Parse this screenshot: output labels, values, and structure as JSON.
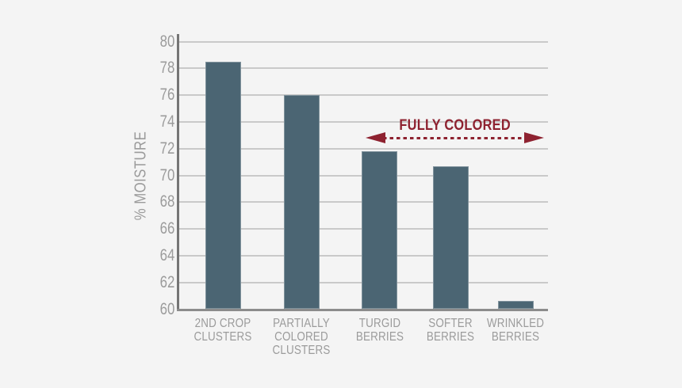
{
  "chart_data": {
    "type": "bar",
    "title": "",
    "xlabel": "",
    "ylabel": "% MOISTURE",
    "categories": [
      "2ND CROP CLUSTERS",
      "PARTIALLY COLORED CLUSTERS",
      "TURGID BERRIES",
      "SOFTER BERRIES",
      "WRINKLED BERRIES"
    ],
    "category_lines": [
      [
        "2ND CROP",
        "CLUSTERS"
      ],
      [
        "PARTIALLY",
        "COLORED",
        "CLUSTERS"
      ],
      [
        "TURGID",
        "BERRIES"
      ],
      [
        "SOFTER",
        "BERRIES"
      ],
      [
        "WRINKLED",
        "BERRIES"
      ]
    ],
    "values": [
      78.5,
      76.0,
      71.8,
      70.7,
      60.6
    ],
    "ylim": [
      60,
      80
    ],
    "yticks": [
      60,
      62,
      64,
      66,
      68,
      70,
      72,
      74,
      76,
      78,
      80
    ],
    "grid": true,
    "legend": "none",
    "annotation": {
      "label": "FULLY COLORED",
      "style": "double-headed-dashed-arrow",
      "spans": "TURGID BERRIES through WRINKLED BERRIES region"
    },
    "colors": {
      "background": "#f4f4f4",
      "bar": "#4b6573",
      "annotation": "#8e2230",
      "grid": "#c9c9c9",
      "axis_y": "#757575",
      "axis_x": "#8c8c8c",
      "text": "#9b9b9b"
    }
  }
}
